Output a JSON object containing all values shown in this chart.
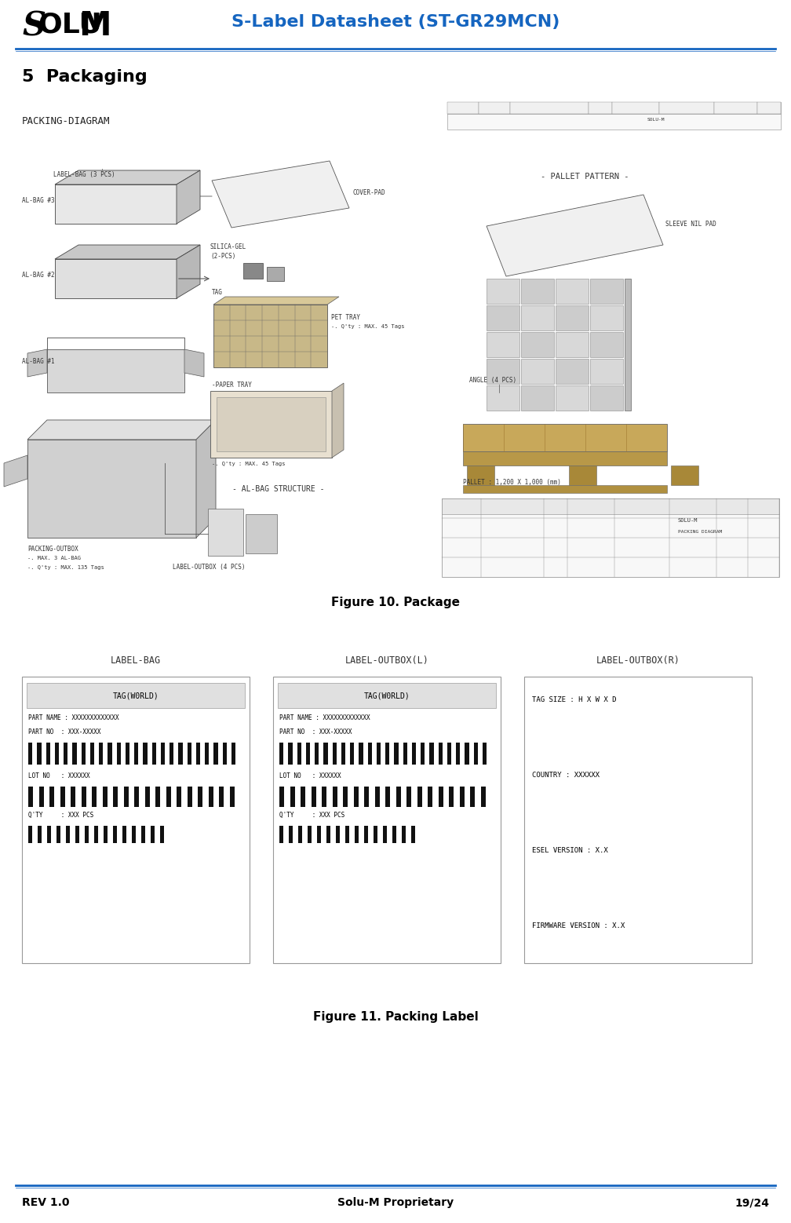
{
  "title": "S-Label Datasheet (ST-GR29MCN)",
  "logo_text": "SOLUM",
  "section_title": "5  Packaging",
  "fig10_caption": "Figure 10. Package",
  "fig11_caption": "Figure 11. Packing Label",
  "footer_left": "REV 1.0",
  "footer_center": "Solu-M Proprietary",
  "footer_right": "19/24",
  "header_line_color": "#1565C0",
  "footer_line_color": "#1565C0",
  "title_color": "#1565C0",
  "bg_color": "#ffffff",
  "page_width": 10.08,
  "page_height": 15.58,
  "dpi": 100
}
